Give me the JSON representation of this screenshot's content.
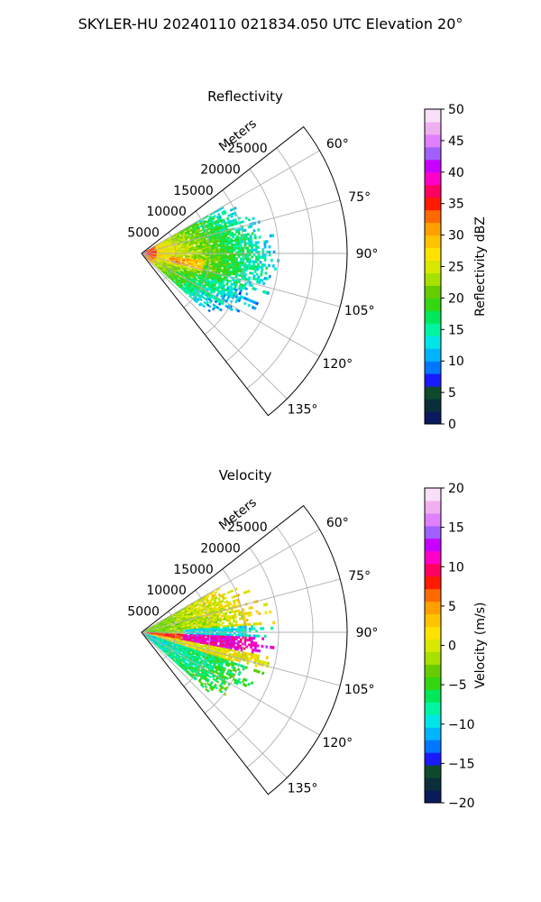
{
  "figure_title": "SKYLER-HU  20240110  021834.050 UTC Elevation 20°",
  "chart_data": [
    {
      "type": "polar-sector-heatmap",
      "title": "Reflectivity",
      "range_label": "Meters",
      "range_max": 30000,
      "range_ticks": [
        "5000",
        "10000",
        "15000",
        "20000",
        "25000"
      ],
      "range_tick_values": [
        5000,
        10000,
        15000,
        20000,
        25000
      ],
      "azimuth_range_deg": [
        52,
        142
      ],
      "azimuth_ticks": [
        "60°",
        "75°",
        "90°",
        "105°",
        "120°",
        "135°"
      ],
      "azimuth_tick_values": [
        60,
        75,
        90,
        105,
        120,
        135
      ],
      "grid": true,
      "colorbar": {
        "label": "Reflectivity dBZ",
        "min": 0,
        "max": 50,
        "ticks": [
          "0",
          "5",
          "10",
          "15",
          "20",
          "25",
          "30",
          "35",
          "40",
          "45",
          "50"
        ],
        "tick_values": [
          0,
          5,
          10,
          15,
          20,
          25,
          30,
          35,
          40,
          45,
          50
        ],
        "colors": [
          "#0a1a5c",
          "#0b2f3a",
          "#0f4a2c",
          "#1a1aff",
          "#0077ff",
          "#00b4ff",
          "#00e6e6",
          "#00f5a0",
          "#00e85a",
          "#33d611",
          "#66cc00",
          "#a8e000",
          "#d8e800",
          "#ffe200",
          "#ffc300",
          "#ffa000",
          "#ff6a00",
          "#ff1a00",
          "#ff0060",
          "#ff00c8",
          "#c800ff",
          "#a060ff",
          "#e080ff",
          "#f0b0f0",
          "#f8e0f8"
        ]
      }
    },
    {
      "type": "polar-sector-heatmap",
      "title": "Velocity",
      "range_label": "Meters",
      "range_max": 30000,
      "range_ticks": [
        "5000",
        "10000",
        "15000",
        "20000",
        "25000"
      ],
      "range_tick_values": [
        5000,
        10000,
        15000,
        20000,
        25000
      ],
      "azimuth_range_deg": [
        52,
        142
      ],
      "azimuth_ticks": [
        "60°",
        "75°",
        "90°",
        "105°",
        "120°",
        "135°"
      ],
      "azimuth_tick_values": [
        60,
        75,
        90,
        105,
        120,
        135
      ],
      "grid": true,
      "colorbar": {
        "label": "Velocity (m/s)",
        "min": -20,
        "max": 20,
        "ticks": [
          "−20",
          "−15",
          "−10",
          "−5",
          "0",
          "5",
          "10",
          "15",
          "20"
        ],
        "tick_values": [
          -20,
          -15,
          -10,
          -5,
          0,
          5,
          10,
          15,
          20
        ],
        "colors": [
          "#0a1a5c",
          "#0b2f3a",
          "#0f4a2c",
          "#1a1aff",
          "#0077ff",
          "#00b4ff",
          "#00e6e6",
          "#00f5a0",
          "#00e85a",
          "#33d611",
          "#66cc00",
          "#a8e000",
          "#d8e800",
          "#ffe200",
          "#ffc300",
          "#ffa000",
          "#ff6a00",
          "#ff1a00",
          "#ff0060",
          "#ff00c8",
          "#c800ff",
          "#a060ff",
          "#e080ff",
          "#f0b0f0",
          "#f8e0f8"
        ]
      }
    }
  ]
}
